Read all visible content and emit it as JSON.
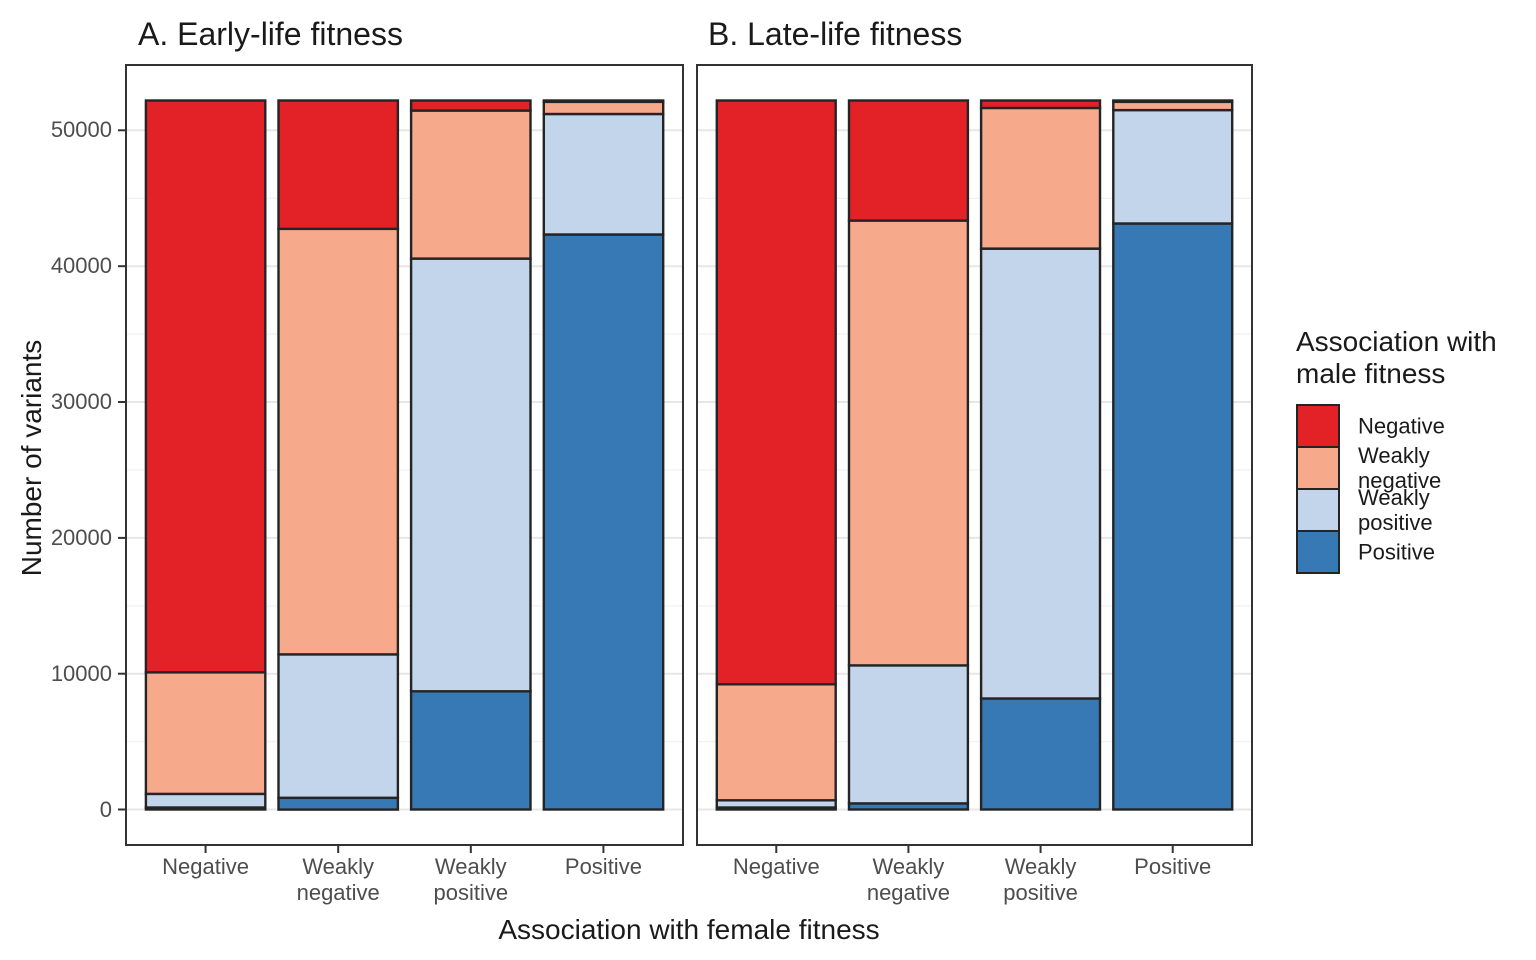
{
  "figure": {
    "x_axis_title": "Association with female fitness",
    "y_axis_title": "Number of variants"
  },
  "legend": {
    "title": "Association with male fitness",
    "items": [
      {
        "label": "Negative",
        "color": "#E32227"
      },
      {
        "label": "Weakly negative",
        "color": "#F7A98C"
      },
      {
        "label": "Weakly positive",
        "color": "#C2D5EB"
      },
      {
        "label": "Positive",
        "color": "#3779B5"
      }
    ]
  },
  "chart_data": {
    "type": "bar",
    "stacked": true,
    "categories": [
      "Negative",
      "Weakly negative",
      "Weakly positive",
      "Positive"
    ],
    "xlabel": "Association with female fitness",
    "ylabel": "Number of variants",
    "bar_total": 52200,
    "ylim": [
      -2610,
      54810
    ],
    "y_ticks": [
      0,
      10000,
      20000,
      30000,
      40000,
      50000
    ],
    "y_minor_ticks": [
      5000,
      15000,
      25000,
      35000,
      45000
    ],
    "colors": {
      "outline": "#242424",
      "panel_border": "#333333",
      "grid_major": "#e7e7e7",
      "grid_minor": "#f2f2f2",
      "axis": "#333333"
    },
    "panels": [
      {
        "title": "A. Early-life fitness",
        "series": [
          {
            "name": "Negative",
            "color": "#E32227",
            "values": [
              42100,
              9450,
              740,
              100
            ]
          },
          {
            "name": "Weakly negative",
            "color": "#F7A98C",
            "values": [
              8950,
              31330,
              10900,
              900
            ]
          },
          {
            "name": "Weakly positive",
            "color": "#C2D5EB",
            "values": [
              1000,
              10560,
              31850,
              8870
            ]
          },
          {
            "name": "Positive",
            "color": "#3779B5",
            "values": [
              150,
              860,
              8710,
              42330
            ]
          }
        ]
      },
      {
        "title": "B. Late-life fitness",
        "series": [
          {
            "name": "Negative",
            "color": "#E32227",
            "values": [
              42980,
              8840,
              550,
              100
            ]
          },
          {
            "name": "Weakly negative",
            "color": "#F7A98C",
            "values": [
              8540,
              32750,
              10360,
              610
            ]
          },
          {
            "name": "Weakly positive",
            "color": "#C2D5EB",
            "values": [
              530,
              10160,
              33110,
              8350
            ]
          },
          {
            "name": "Positive",
            "color": "#3779B5",
            "values": [
              150,
              450,
              8180,
              43140
            ]
          }
        ]
      }
    ]
  }
}
